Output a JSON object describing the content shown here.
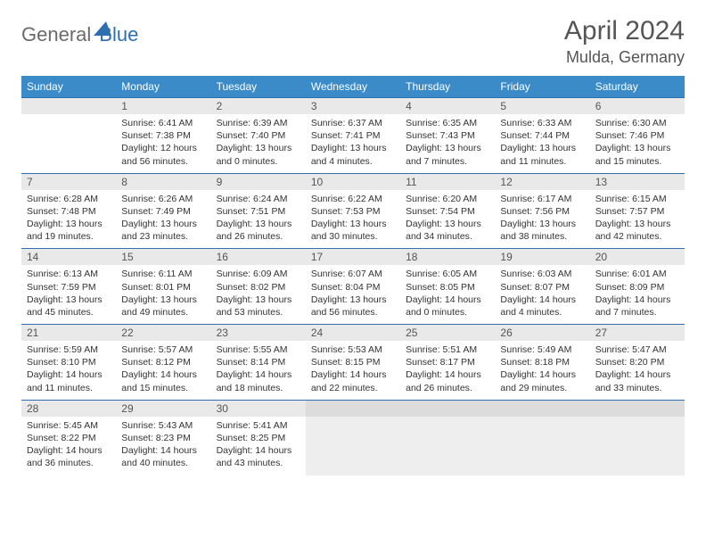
{
  "brand": {
    "part1": "General",
    "part2": "Blue"
  },
  "title": "April 2024",
  "location": "Mulda, Germany",
  "colors": {
    "header_bg": "#3b8bc9",
    "border": "#2f6fb0",
    "daynum_bg": "#e9e9e9",
    "text": "#333333",
    "muted": "#555555"
  },
  "day_headers": [
    "Sunday",
    "Monday",
    "Tuesday",
    "Wednesday",
    "Thursday",
    "Friday",
    "Saturday"
  ],
  "weeks": [
    {
      "cells": [
        {
          "empty": true
        },
        {
          "num": "1",
          "lines": [
            "Sunrise: 6:41 AM",
            "Sunset: 7:38 PM",
            "Daylight: 12 hours",
            "and 56 minutes."
          ]
        },
        {
          "num": "2",
          "lines": [
            "Sunrise: 6:39 AM",
            "Sunset: 7:40 PM",
            "Daylight: 13 hours",
            "and 0 minutes."
          ]
        },
        {
          "num": "3",
          "lines": [
            "Sunrise: 6:37 AM",
            "Sunset: 7:41 PM",
            "Daylight: 13 hours",
            "and 4 minutes."
          ]
        },
        {
          "num": "4",
          "lines": [
            "Sunrise: 6:35 AM",
            "Sunset: 7:43 PM",
            "Daylight: 13 hours",
            "and 7 minutes."
          ]
        },
        {
          "num": "5",
          "lines": [
            "Sunrise: 6:33 AM",
            "Sunset: 7:44 PM",
            "Daylight: 13 hours",
            "and 11 minutes."
          ]
        },
        {
          "num": "6",
          "lines": [
            "Sunrise: 6:30 AM",
            "Sunset: 7:46 PM",
            "Daylight: 13 hours",
            "and 15 minutes."
          ]
        }
      ]
    },
    {
      "cells": [
        {
          "num": "7",
          "lines": [
            "Sunrise: 6:28 AM",
            "Sunset: 7:48 PM",
            "Daylight: 13 hours",
            "and 19 minutes."
          ]
        },
        {
          "num": "8",
          "lines": [
            "Sunrise: 6:26 AM",
            "Sunset: 7:49 PM",
            "Daylight: 13 hours",
            "and 23 minutes."
          ]
        },
        {
          "num": "9",
          "lines": [
            "Sunrise: 6:24 AM",
            "Sunset: 7:51 PM",
            "Daylight: 13 hours",
            "and 26 minutes."
          ]
        },
        {
          "num": "10",
          "lines": [
            "Sunrise: 6:22 AM",
            "Sunset: 7:53 PM",
            "Daylight: 13 hours",
            "and 30 minutes."
          ]
        },
        {
          "num": "11",
          "lines": [
            "Sunrise: 6:20 AM",
            "Sunset: 7:54 PM",
            "Daylight: 13 hours",
            "and 34 minutes."
          ]
        },
        {
          "num": "12",
          "lines": [
            "Sunrise: 6:17 AM",
            "Sunset: 7:56 PM",
            "Daylight: 13 hours",
            "and 38 minutes."
          ]
        },
        {
          "num": "13",
          "lines": [
            "Sunrise: 6:15 AM",
            "Sunset: 7:57 PM",
            "Daylight: 13 hours",
            "and 42 minutes."
          ]
        }
      ]
    },
    {
      "cells": [
        {
          "num": "14",
          "lines": [
            "Sunrise: 6:13 AM",
            "Sunset: 7:59 PM",
            "Daylight: 13 hours",
            "and 45 minutes."
          ]
        },
        {
          "num": "15",
          "lines": [
            "Sunrise: 6:11 AM",
            "Sunset: 8:01 PM",
            "Daylight: 13 hours",
            "and 49 minutes."
          ]
        },
        {
          "num": "16",
          "lines": [
            "Sunrise: 6:09 AM",
            "Sunset: 8:02 PM",
            "Daylight: 13 hours",
            "and 53 minutes."
          ]
        },
        {
          "num": "17",
          "lines": [
            "Sunrise: 6:07 AM",
            "Sunset: 8:04 PM",
            "Daylight: 13 hours",
            "and 56 minutes."
          ]
        },
        {
          "num": "18",
          "lines": [
            "Sunrise: 6:05 AM",
            "Sunset: 8:05 PM",
            "Daylight: 14 hours",
            "and 0 minutes."
          ]
        },
        {
          "num": "19",
          "lines": [
            "Sunrise: 6:03 AM",
            "Sunset: 8:07 PM",
            "Daylight: 14 hours",
            "and 4 minutes."
          ]
        },
        {
          "num": "20",
          "lines": [
            "Sunrise: 6:01 AM",
            "Sunset: 8:09 PM",
            "Daylight: 14 hours",
            "and 7 minutes."
          ]
        }
      ]
    },
    {
      "cells": [
        {
          "num": "21",
          "lines": [
            "Sunrise: 5:59 AM",
            "Sunset: 8:10 PM",
            "Daylight: 14 hours",
            "and 11 minutes."
          ]
        },
        {
          "num": "22",
          "lines": [
            "Sunrise: 5:57 AM",
            "Sunset: 8:12 PM",
            "Daylight: 14 hours",
            "and 15 minutes."
          ]
        },
        {
          "num": "23",
          "lines": [
            "Sunrise: 5:55 AM",
            "Sunset: 8:14 PM",
            "Daylight: 14 hours",
            "and 18 minutes."
          ]
        },
        {
          "num": "24",
          "lines": [
            "Sunrise: 5:53 AM",
            "Sunset: 8:15 PM",
            "Daylight: 14 hours",
            "and 22 minutes."
          ]
        },
        {
          "num": "25",
          "lines": [
            "Sunrise: 5:51 AM",
            "Sunset: 8:17 PM",
            "Daylight: 14 hours",
            "and 26 minutes."
          ]
        },
        {
          "num": "26",
          "lines": [
            "Sunrise: 5:49 AM",
            "Sunset: 8:18 PM",
            "Daylight: 14 hours",
            "and 29 minutes."
          ]
        },
        {
          "num": "27",
          "lines": [
            "Sunrise: 5:47 AM",
            "Sunset: 8:20 PM",
            "Daylight: 14 hours",
            "and 33 minutes."
          ]
        }
      ]
    },
    {
      "cells": [
        {
          "num": "28",
          "lines": [
            "Sunrise: 5:45 AM",
            "Sunset: 8:22 PM",
            "Daylight: 14 hours",
            "and 36 minutes."
          ]
        },
        {
          "num": "29",
          "lines": [
            "Sunrise: 5:43 AM",
            "Sunset: 8:23 PM",
            "Daylight: 14 hours",
            "and 40 minutes."
          ]
        },
        {
          "num": "30",
          "lines": [
            "Sunrise: 5:41 AM",
            "Sunset: 8:25 PM",
            "Daylight: 14 hours",
            "and 43 minutes."
          ]
        },
        {
          "trailing": true
        },
        {
          "trailing": true
        },
        {
          "trailing": true
        },
        {
          "trailing": true
        }
      ]
    }
  ]
}
